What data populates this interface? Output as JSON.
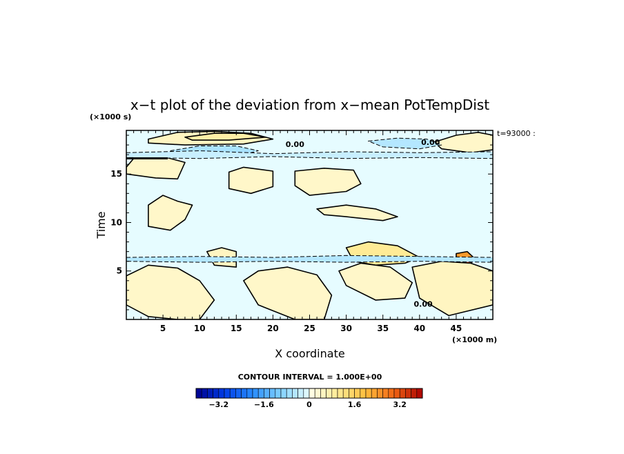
{
  "chart_data": {
    "type": "heatmap",
    "title": "x−t plot of the deviation from x−mean PotTempDist",
    "xlabel": "X coordinate",
    "ylabel": "Time",
    "x_unit": "(×1000 m)",
    "y_unit": "(×1000 s)",
    "xlim": [
      0,
      50
    ],
    "ylim": [
      0,
      19.5
    ],
    "x_ticks": [
      5,
      10,
      15,
      20,
      25,
      30,
      35,
      40,
      45
    ],
    "y_ticks": [
      5,
      10,
      15
    ],
    "time_label": "t=93000 :",
    "contour_interval_text": "CONTOUR INTERVAL = 1.000E+00",
    "contour_labels": [
      {
        "text": "0.00",
        "x": 23,
        "y": 17.8
      },
      {
        "text": "0.00",
        "x": 41.5,
        "y": 18.0
      },
      {
        "text": "0.00",
        "x": 40.5,
        "y": 1.3
      }
    ],
    "colorbar": {
      "min": -4.0,
      "max": 4.0,
      "step": 0.2,
      "ticks": [
        -3.2,
        -1.6,
        0,
        1.6,
        3.2
      ],
      "tick_labels": [
        "−3.2",
        "−1.6",
        "0",
        "1.6",
        "3.2"
      ]
    },
    "regions": [
      {
        "kind": "positive",
        "level": 0.5,
        "x": [
          3,
          7,
          12,
          17,
          20,
          16,
          8,
          3
        ],
        "y": [
          18.6,
          19.3,
          19.4,
          19.2,
          18.6,
          18.1,
          18.0,
          18.2
        ]
      },
      {
        "kind": "positive",
        "level": 0.8,
        "x": [
          8,
          12,
          16,
          19,
          14,
          9
        ],
        "y": [
          18.8,
          19.2,
          19.2,
          18.8,
          18.5,
          18.5
        ]
      },
      {
        "kind": "positive",
        "level": 0.4,
        "x": [
          42,
          45,
          48,
          50,
          50,
          47,
          43
        ],
        "y": [
          18.3,
          19.0,
          19.3,
          19.0,
          17.5,
          17.2,
          17.6
        ]
      },
      {
        "kind": "negative",
        "level": -0.6,
        "x": [
          6,
          10,
          15,
          18,
          16,
          11,
          7
        ],
        "y": [
          17.4,
          17.9,
          17.9,
          17.4,
          17.0,
          16.9,
          17.0
        ]
      },
      {
        "kind": "negative",
        "level": -0.5,
        "x": [
          33,
          37,
          41,
          43,
          40,
          35
        ],
        "y": [
          18.4,
          18.7,
          18.6,
          18.0,
          17.6,
          17.8
        ]
      },
      {
        "kind": "positive",
        "level": 0.4,
        "x": [
          3,
          5,
          7,
          9,
          8,
          6,
          3
        ],
        "y": [
          11.8,
          12.8,
          12.2,
          11.8,
          10.3,
          9.2,
          9.6
        ]
      },
      {
        "kind": "positive",
        "level": 0.4,
        "x": [
          14,
          16,
          20,
          20,
          17,
          14
        ],
        "y": [
          15.2,
          15.7,
          15.3,
          13.7,
          13.0,
          13.5
        ]
      },
      {
        "kind": "positive",
        "level": 0.4,
        "x": [
          23,
          27,
          31,
          32,
          30,
          25,
          23
        ],
        "y": [
          15.3,
          15.6,
          15.4,
          14.0,
          13.2,
          12.8,
          13.8
        ]
      },
      {
        "kind": "positive",
        "level": 0.4,
        "x": [
          0,
          1,
          5,
          8,
          7,
          4,
          0
        ],
        "y": [
          15.7,
          16.6,
          16.8,
          16.2,
          14.5,
          14.6,
          15.0
        ]
      },
      {
        "kind": "positive",
        "level": 0.4,
        "x": [
          26,
          30,
          34,
          37,
          35,
          30,
          27
        ],
        "y": [
          11.4,
          11.8,
          11.4,
          10.6,
          10.2,
          10.6,
          10.8
        ]
      },
      {
        "kind": "positive",
        "level": 0.5,
        "x": [
          11,
          13,
          15,
          15,
          12
        ],
        "y": [
          7.0,
          7.4,
          7.0,
          5.4,
          5.6
        ]
      },
      {
        "kind": "positive",
        "level": 1.0,
        "x": [
          30,
          33,
          37,
          40,
          38,
          34,
          31
        ],
        "y": [
          7.4,
          8.0,
          7.6,
          6.4,
          5.8,
          5.6,
          6.0
        ]
      },
      {
        "kind": "positive",
        "level": 2.4,
        "x": [
          45,
          46.5,
          47.5,
          46.5,
          45
        ],
        "y": [
          6.8,
          7.0,
          6.3,
          5.2,
          5.6
        ]
      },
      {
        "kind": "positive",
        "level": 3.4,
        "x": [
          45.8,
          46.8,
          47.2,
          46.4
        ],
        "y": [
          6.4,
          6.2,
          5.6,
          5.4
        ]
      },
      {
        "kind": "positive",
        "level": 0.4,
        "x": [
          0,
          3,
          7,
          10,
          12,
          10,
          7,
          3,
          0
        ],
        "y": [
          4.5,
          5.6,
          5.3,
          4.0,
          2.0,
          0.0,
          0.0,
          0.3,
          1.5
        ]
      },
      {
        "kind": "positive",
        "level": 0.4,
        "x": [
          16,
          18,
          22,
          26,
          28,
          27,
          23,
          18
        ],
        "y": [
          4.0,
          5.0,
          5.4,
          4.6,
          2.5,
          0.0,
          0.0,
          1.5
        ]
      },
      {
        "kind": "positive",
        "level": 0.4,
        "x": [
          29,
          32,
          36,
          39,
          38,
          34,
          30
        ],
        "y": [
          5.0,
          5.8,
          5.4,
          3.8,
          2.2,
          2.0,
          3.5
        ]
      },
      {
        "kind": "positive",
        "level": 0.5,
        "x": [
          39,
          43,
          47,
          50,
          50,
          44,
          40
        ],
        "y": [
          5.4,
          6.0,
          5.8,
          5.0,
          1.5,
          0.4,
          2.2
        ]
      },
      {
        "kind": "negative",
        "level": -0.5,
        "x": [
          0,
          10,
          20,
          30,
          40,
          50,
          50,
          40,
          30,
          20,
          10,
          0
        ],
        "y": [
          6.4,
          6.5,
          6.4,
          6.6,
          6.5,
          6.4,
          5.9,
          6.0,
          5.9,
          6.0,
          5.9,
          6.0
        ]
      },
      {
        "kind": "negative",
        "level": -0.3,
        "x": [
          0,
          10,
          20,
          30,
          40,
          50,
          50,
          40,
          30,
          20,
          10,
          0
        ],
        "y": [
          17.2,
          17.4,
          17.1,
          17.3,
          17.2,
          17.3,
          16.6,
          16.7,
          16.6,
          16.8,
          16.6,
          16.7
        ]
      }
    ]
  }
}
